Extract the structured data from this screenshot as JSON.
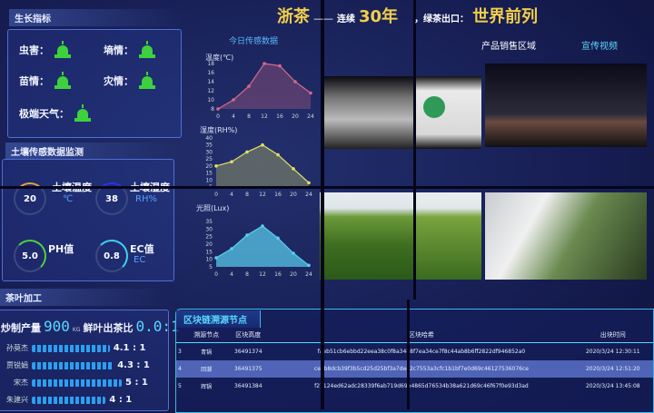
{
  "header": {
    "brand": "浙茶",
    "dash": "——",
    "subtitle": "连续",
    "years": "30年",
    "mid": "，绿茶出口：",
    "rank": "世界前列"
  },
  "growth": {
    "title": "生长指标",
    "items": [
      {
        "label": "虫害：",
        "status": "normal"
      },
      {
        "label": "墒情：",
        "status": "normal"
      },
      {
        "label": "苗情：",
        "status": "normal"
      },
      {
        "label": "灾情：",
        "status": "normal"
      },
      {
        "label": "极端天气：",
        "status": "normal"
      }
    ]
  },
  "soil": {
    "title": "土壤传感数据监测",
    "temp": {
      "label": "土壤温度",
      "value": "20",
      "unit": "℃"
    },
    "humidity": {
      "label": "土壤湿度",
      "value": "38",
      "unit": "RH%"
    },
    "ph": {
      "label": "PH值",
      "value": "5.0"
    },
    "ec": {
      "label": "EC值",
      "value": "0.8",
      "unit": "EC"
    }
  },
  "sensor_title": "今日传感数据",
  "chart_data": [
    {
      "type": "area",
      "title": "温度(℃)",
      "x": [
        0,
        4,
        8,
        12,
        16,
        20,
        24
      ],
      "y": [
        8,
        10,
        13,
        18,
        17.5,
        14,
        11.5
      ],
      "xticks": [
        "0",
        "4",
        "8",
        "12",
        "16",
        "20",
        "24"
      ],
      "yticks": [
        "8",
        "10",
        "12",
        "14",
        "16",
        "18"
      ],
      "ylim": [
        8,
        18
      ],
      "color": "#d56a8a"
    },
    {
      "type": "area",
      "title": "湿度(RH%)",
      "x": [
        0,
        4,
        8,
        12,
        16,
        20,
        24
      ],
      "y": [
        20,
        23,
        30,
        35,
        28,
        18,
        8
      ],
      "xticks": [
        "0",
        "4",
        "8",
        "12",
        "16",
        "20",
        "24"
      ],
      "yticks": [
        "5",
        "10",
        "15",
        "20",
        "25",
        "30",
        "35",
        "40"
      ],
      "ylim": [
        5,
        40
      ],
      "color": "#e0e060"
    },
    {
      "type": "area",
      "title": "光照(Lux)",
      "x": [
        0,
        4,
        8,
        12,
        16,
        20,
        24
      ],
      "y": [
        11,
        17,
        26,
        32,
        24,
        14,
        6
      ],
      "xticks": [
        "0",
        "4",
        "8",
        "12",
        "16",
        "20",
        "24"
      ],
      "yticks": [
        "5",
        "10",
        "15",
        "20",
        "25",
        "30",
        "35"
      ],
      "ylim": [
        5,
        35
      ],
      "color": "#5ad0f0"
    }
  ],
  "sales": {
    "title": "产品销售区域",
    "video_tab": "宣传视频"
  },
  "processing": {
    "title": "茶叶加工",
    "output_label": "炒制产量",
    "output_value": "900",
    "output_unit": "KG",
    "ratio_label": "鲜叶出茶比",
    "ratio_value": "0.0:1",
    "workers": [
      {
        "name": "孙莫杰",
        "ratio": "4.1 : 1",
        "level": 0.78
      },
      {
        "name": "贾锐娟",
        "ratio": "4.3 : 1",
        "level": 0.82
      },
      {
        "name": "宋杰",
        "ratio": "5 : 1",
        "level": 0.9
      },
      {
        "name": "朱建兴",
        "ratio": "4 : 1",
        "level": 0.74
      }
    ]
  },
  "blockchain": {
    "title": "区块链溯源节点",
    "columns": [
      "",
      "溯源节点",
      "区块高度",
      "区块哈希",
      "出块时间"
    ],
    "rows": [
      [
        "3",
        "青锅",
        "36491374",
        "faeb51cb6ebbd22eea38c0f8a3488f7ea34ce7f8c44ab8b6ff2822df946852a0",
        "2020/3/24 12:30:11"
      ],
      [
        "4",
        "回潮",
        "36491375",
        "ceeb8dcb39f3b5cd25d25bf3a7dee2c7553a3cfc1b1bf7e0d69c46127536076ce",
        "2020/3/24 12:51:20"
      ],
      [
        "5",
        "辉锅",
        "36491384",
        "f27124ed62adc28339f6ab719d69b4865d76534b38a621d69c46f67f0e93d3ad",
        "2020/3/24 13:45:08"
      ]
    ]
  }
}
